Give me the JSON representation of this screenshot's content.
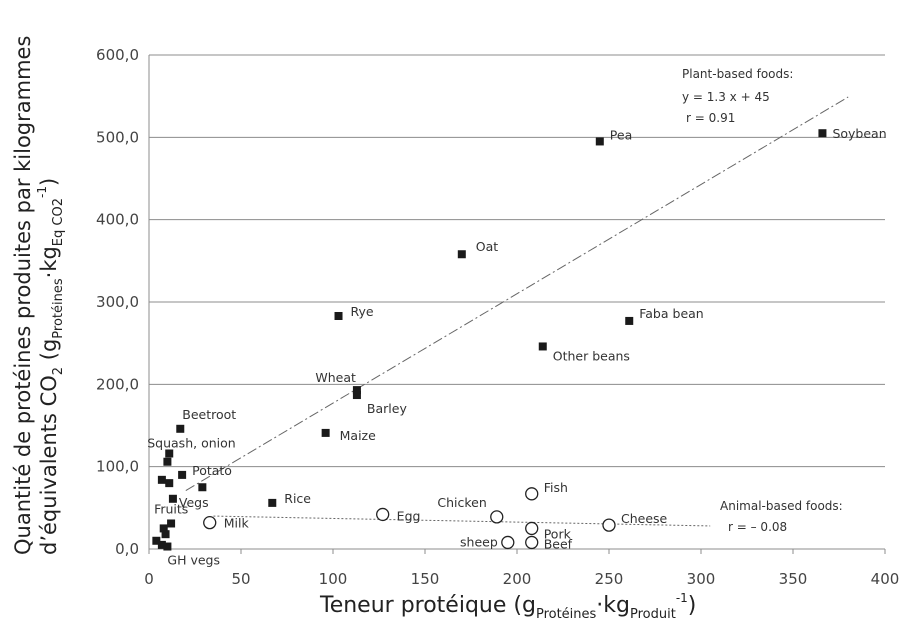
{
  "chart_data": {
    "type": "scatter",
    "xlim": [
      0,
      400
    ],
    "ylim": [
      0,
      600
    ],
    "x_ticks": [
      "0",
      "50",
      "100",
      "150",
      "200",
      "250",
      "300",
      "350",
      "400"
    ],
    "y_ticks": [
      "0,0",
      "100,0",
      "200,0",
      "300,0",
      "400,0",
      "500,0",
      "600,0"
    ],
    "xlabel": {
      "main": "Teneur protéique (g",
      "sub1": "Protéines",
      "mid": "·kg",
      "sub2": "Produit",
      "sup": "-1",
      "end": ")"
    },
    "ylabel": {
      "line1": "Quantité de protéines produites par kilogrammes",
      "line2_main": "d’équivalents CO",
      "line2_sub0": "2",
      "line2_mid": " (g",
      "line2_sub1": "Protéines",
      "line2_mid2": "·kg",
      "line2_sub2": "Eq CO2",
      "line2_sup": "-1",
      "line2_end": ")"
    },
    "grid": "horizontal",
    "series": [
      {
        "name": "Plant-based foods",
        "marker": "square",
        "points": [
          {
            "x": 366,
            "y": 505,
            "label": "Soybean"
          },
          {
            "x": 245,
            "y": 495,
            "label": "Pea"
          },
          {
            "x": 170,
            "y": 358,
            "label": "Oat"
          },
          {
            "x": 261,
            "y": 277,
            "label": "Faba bean"
          },
          {
            "x": 103,
            "y": 283,
            "label": "Rye"
          },
          {
            "x": 214,
            "y": 246,
            "label": "Other beans"
          },
          {
            "x": 113,
            "y": 193,
            "label": "Wheat"
          },
          {
            "x": 113,
            "y": 187,
            "label": "Barley"
          },
          {
            "x": 96,
            "y": 141,
            "label": "Maize"
          },
          {
            "x": 17,
            "y": 146,
            "label": "Beetroot"
          },
          {
            "x": 11,
            "y": 116,
            "label": "Squash, onion"
          },
          {
            "x": 10,
            "y": 106,
            "label": ""
          },
          {
            "x": 18,
            "y": 90,
            "label": "Potato"
          },
          {
            "x": 7,
            "y": 84,
            "label": ""
          },
          {
            "x": 11,
            "y": 80,
            "label": ""
          },
          {
            "x": 29,
            "y": 75,
            "label": ""
          },
          {
            "x": 13,
            "y": 61,
            "label": "Vegs"
          },
          {
            "x": 67,
            "y": 56,
            "label": "Rice"
          },
          {
            "x": 12,
            "y": 31,
            "label": "Fruits"
          },
          {
            "x": 8,
            "y": 25,
            "label": ""
          },
          {
            "x": 9,
            "y": 18,
            "label": ""
          },
          {
            "x": 4,
            "y": 10,
            "label": ""
          },
          {
            "x": 7,
            "y": 5,
            "label": ""
          },
          {
            "x": 10,
            "y": 3,
            "label": "GH vegs"
          }
        ]
      },
      {
        "name": "Animal-based foods",
        "marker": "circle",
        "points": [
          {
            "x": 33,
            "y": 32,
            "label": "Milk"
          },
          {
            "x": 127,
            "y": 42,
            "label": "Egg"
          },
          {
            "x": 189,
            "y": 39,
            "label": "Chicken"
          },
          {
            "x": 208,
            "y": 67,
            "label": "Fish"
          },
          {
            "x": 250,
            "y": 29,
            "label": "Cheese"
          },
          {
            "x": 208,
            "y": 25,
            "label": "Pork"
          },
          {
            "x": 195,
            "y": 8,
            "label": "sheep"
          },
          {
            "x": 208,
            "y": 8,
            "label": "Beef"
          }
        ]
      }
    ],
    "trendlines": [
      {
        "series": "Plant-based foods",
        "equation": "y = 1.3 x + 45",
        "r": "r = 0.91",
        "from": [
          20,
          71
        ],
        "to": [
          380,
          549
        ]
      },
      {
        "series": "Animal-based foods",
        "r": "r = – 0.08",
        "from": [
          35,
          40
        ],
        "to": [
          305,
          28
        ]
      }
    ],
    "annotations": {
      "plant_title": "Plant-based foods:",
      "plant_eq": "y = 1.3 x + 45",
      "plant_r": "r = 0.91",
      "animal_title": "Animal-based foods:",
      "animal_r": "r = – 0.08"
    }
  }
}
